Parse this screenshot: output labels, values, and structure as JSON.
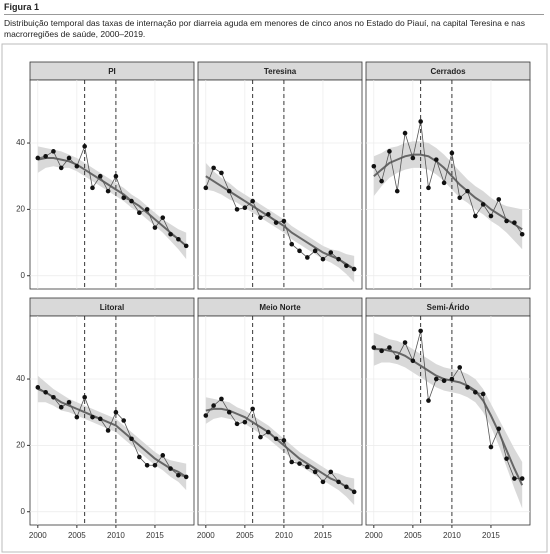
{
  "figure_label": "Figura 1",
  "caption": "Distribuição temporal das taxas de internação por diarreia aguda em menores de cinco anos no Estado do Piauí, na capital Teresina e nas macrorregiões de saúde, 2000–2019.",
  "chart_data": [
    {
      "type": "line",
      "title": "PI",
      "x": [
        2000,
        2001,
        2002,
        2003,
        2004,
        2005,
        2006,
        2007,
        2008,
        2009,
        2010,
        2011,
        2012,
        2013,
        2014,
        2015,
        2016,
        2017,
        2018,
        2019
      ],
      "xlim": [
        1999,
        2020
      ],
      "ylim": [
        -4,
        59
      ],
      "yticks": [
        0,
        20,
        40
      ],
      "grid": true,
      "vlines": [
        2006,
        2010
      ],
      "series": [
        {
          "color": "#555555",
          "markers": true,
          "values": [
            35.5,
            36,
            37.5,
            32.5,
            35.5,
            33,
            39,
            26.5,
            30,
            25.5,
            30,
            23.5,
            22.5,
            19,
            20,
            14.5,
            17.5,
            12.5,
            11,
            9
          ]
        },
        {
          "color": "#666666",
          "values": [
            35,
            35.5,
            35.5,
            35,
            34.5,
            33.5,
            32,
            30.5,
            29,
            27.5,
            26,
            24.5,
            22.5,
            21,
            19,
            17,
            15,
            13,
            11,
            9
          ]
        }
      ],
      "band": {
        "color": "#d9d9d9",
        "lower": [
          31,
          32.5,
          33,
          32.5,
          32.5,
          31.5,
          30,
          28.5,
          27,
          25.5,
          24,
          22.5,
          20.5,
          19,
          17,
          15,
          13,
          10.5,
          8,
          5
        ],
        "upper": [
          39,
          38.5,
          38,
          37.5,
          36.5,
          35.5,
          34,
          32.5,
          31,
          29.5,
          28,
          26.5,
          24.5,
          23,
          21,
          19,
          17,
          15.5,
          14,
          13
        ]
      }
    },
    {
      "type": "line",
      "title": "Teresina",
      "x": [
        2000,
        2001,
        2002,
        2003,
        2004,
        2005,
        2006,
        2007,
        2008,
        2009,
        2010,
        2011,
        2012,
        2013,
        2014,
        2015,
        2016,
        2017,
        2018,
        2019
      ],
      "xlim": [
        1999,
        2020
      ],
      "ylim": [
        -4,
        59
      ],
      "grid": true,
      "vlines": [
        2006,
        2010
      ],
      "series": [
        {
          "color": "#555555",
          "markers": true,
          "values": [
            26.5,
            32.5,
            31,
            25.5,
            20,
            20.5,
            22.5,
            17.5,
            18.5,
            16,
            16.5,
            9.5,
            7.5,
            5.5,
            7.5,
            5,
            7,
            5,
            3,
            2
          ]
        },
        {
          "color": "#666666",
          "values": [
            30,
            28.5,
            27,
            25.5,
            24,
            22.5,
            21,
            19.5,
            18,
            16.5,
            15,
            13,
            11.5,
            10,
            8.5,
            7,
            6,
            5,
            3.5,
            2
          ]
        }
      ],
      "band": {
        "color": "#d9d9d9",
        "lower": [
          26,
          25.5,
          24.5,
          23,
          22,
          20.5,
          19,
          17.5,
          16,
          14.5,
          13,
          11,
          9.5,
          8,
          6.5,
          5,
          4,
          2.5,
          0.5,
          -2
        ],
        "upper": [
          34,
          31.5,
          29.5,
          28,
          26,
          24.5,
          23,
          21.5,
          20,
          18.5,
          17,
          15,
          13.5,
          12,
          10.5,
          9,
          8,
          7.5,
          6.5,
          6
        ]
      }
    },
    {
      "type": "line",
      "title": "Cerrados",
      "x": [
        2000,
        2001,
        2002,
        2003,
        2004,
        2005,
        2006,
        2007,
        2008,
        2009,
        2010,
        2011,
        2012,
        2013,
        2014,
        2015,
        2016,
        2017,
        2018,
        2019
      ],
      "xlim": [
        1999,
        2020
      ],
      "ylim": [
        -4,
        59
      ],
      "grid": true,
      "vlines": [
        2006,
        2010
      ],
      "series": [
        {
          "color": "#555555",
          "markers": true,
          "values": [
            33,
            28.5,
            37.5,
            25.5,
            43,
            35.5,
            46.5,
            26.5,
            35,
            28,
            37,
            23.5,
            25.5,
            18,
            21.5,
            18,
            23,
            16.5,
            16,
            12.5
          ]
        },
        {
          "color": "#666666",
          "values": [
            30,
            32,
            34,
            35,
            36,
            36.5,
            36.5,
            36,
            34.5,
            32.5,
            30,
            27.5,
            25.5,
            23.5,
            22,
            20,
            18.5,
            17,
            15.5,
            14
          ]
        }
      ],
      "band": {
        "color": "#d9d9d9",
        "lower": [
          24,
          27,
          29.5,
          31,
          32,
          32.5,
          32.5,
          32,
          30.5,
          28.5,
          26,
          23.5,
          22,
          20,
          18.5,
          16.5,
          15,
          13,
          10.5,
          8
        ],
        "upper": [
          36,
          37,
          38.5,
          39,
          40,
          40.5,
          40.5,
          40,
          38.5,
          36.5,
          34,
          31.5,
          29,
          27,
          25.5,
          23.5,
          22,
          21,
          20.5,
          20
        ]
      }
    },
    {
      "type": "line",
      "title": "Litoral",
      "x": [
        2000,
        2001,
        2002,
        2003,
        2004,
        2005,
        2006,
        2007,
        2008,
        2009,
        2010,
        2011,
        2012,
        2013,
        2014,
        2015,
        2016,
        2017,
        2018,
        2019
      ],
      "xlim": [
        1999,
        2020
      ],
      "ylim": [
        -4,
        59
      ],
      "xticks": [
        2000,
        2005,
        2010,
        2015
      ],
      "yticks": [
        0,
        20,
        40
      ],
      "grid": true,
      "vlines": [
        2006,
        2010
      ],
      "series": [
        {
          "color": "#555555",
          "markers": true,
          "values": [
            37.5,
            36,
            34.5,
            31.5,
            33,
            28.5,
            34.5,
            28.5,
            28,
            24.5,
            30,
            27.5,
            22,
            16.5,
            14,
            14,
            17,
            13,
            11,
            10.5
          ]
        },
        {
          "color": "#666666",
          "values": [
            37,
            36,
            34.5,
            33,
            32,
            31,
            30,
            29,
            28,
            27,
            26,
            24,
            22,
            20,
            18,
            16,
            14.5,
            13,
            12,
            10.5
          ]
        }
      ],
      "band": {
        "color": "#d9d9d9",
        "lower": [
          33,
          33,
          32,
          30.5,
          30,
          29,
          28,
          27,
          26,
          25,
          24,
          22,
          20,
          18,
          16,
          14,
          12.5,
          10.5,
          9,
          6.5
        ],
        "upper": [
          41,
          39,
          37,
          35.5,
          34,
          33,
          32,
          31,
          30,
          29,
          28,
          26,
          24,
          22,
          20,
          18,
          16.5,
          15.5,
          15,
          14.5
        ]
      }
    },
    {
      "type": "line",
      "title": "Meio Norte",
      "x": [
        2000,
        2001,
        2002,
        2003,
        2004,
        2005,
        2006,
        2007,
        2008,
        2009,
        2010,
        2011,
        2012,
        2013,
        2014,
        2015,
        2016,
        2017,
        2018,
        2019
      ],
      "xlim": [
        1999,
        2020
      ],
      "ylim": [
        -4,
        59
      ],
      "xticks": [
        2000,
        2005,
        2010,
        2015
      ],
      "grid": true,
      "vlines": [
        2006,
        2010
      ],
      "series": [
        {
          "color": "#555555",
          "markers": true,
          "values": [
            29,
            32,
            34,
            30,
            26.5,
            27,
            31,
            22.5,
            24,
            22,
            21.5,
            15,
            14.5,
            13.5,
            12,
            9,
            12,
            9,
            7.5,
            6
          ]
        },
        {
          "color": "#666666",
          "values": [
            30.5,
            31,
            31,
            30.5,
            29.5,
            28.5,
            27,
            25.5,
            24,
            22,
            20,
            18,
            16,
            14.5,
            13,
            11.5,
            10,
            9,
            7.5,
            6
          ]
        }
      ],
      "band": {
        "color": "#d9d9d9",
        "lower": [
          26.5,
          28,
          28.5,
          28,
          27.5,
          26.5,
          25,
          23.5,
          22,
          20,
          18,
          16,
          14,
          12.5,
          11,
          9.5,
          8,
          6.5,
          4.5,
          2
        ],
        "upper": [
          34.5,
          34,
          33.5,
          33,
          31.5,
          30.5,
          29,
          27.5,
          26,
          24,
          22,
          20,
          18,
          16.5,
          15,
          13.5,
          12,
          11.5,
          10.5,
          10
        ]
      }
    },
    {
      "type": "line",
      "title": "Semi-Árido",
      "x": [
        2000,
        2001,
        2002,
        2003,
        2004,
        2005,
        2006,
        2007,
        2008,
        2009,
        2010,
        2011,
        2012,
        2013,
        2014,
        2015,
        2016,
        2017,
        2018,
        2019
      ],
      "xlim": [
        1999,
        2020
      ],
      "ylim": [
        -4,
        59
      ],
      "xticks": [
        2000,
        2005,
        2010,
        2015
      ],
      "grid": true,
      "vlines": [
        2006,
        2010
      ],
      "series": [
        {
          "color": "#555555",
          "markers": true,
          "values": [
            49.5,
            48.5,
            49.5,
            46.5,
            51,
            45.5,
            54.5,
            33.5,
            40,
            39.5,
            40,
            43.5,
            37.5,
            36,
            35.5,
            19.5,
            25,
            16,
            10,
            10
          ]
        },
        {
          "color": "#666666",
          "values": [
            49,
            49,
            48.5,
            48,
            47,
            45.5,
            44,
            42.5,
            41,
            40,
            39.5,
            39,
            38,
            36.5,
            33.5,
            29,
            24,
            18.5,
            13,
            8
          ]
        }
      ],
      "band": {
        "color": "#d9d9d9",
        "lower": [
          44,
          45,
          45,
          44.5,
          43.5,
          42,
          40.5,
          39,
          37.5,
          36.5,
          36,
          35.5,
          34.5,
          33,
          30,
          25.5,
          20,
          13.5,
          7,
          1
        ],
        "upper": [
          54,
          53,
          52,
          51.5,
          50.5,
          49,
          47.5,
          46,
          44.5,
          43.5,
          43,
          42.5,
          41.5,
          40,
          37,
          32.5,
          28,
          23.5,
          19,
          15
        ]
      }
    }
  ]
}
